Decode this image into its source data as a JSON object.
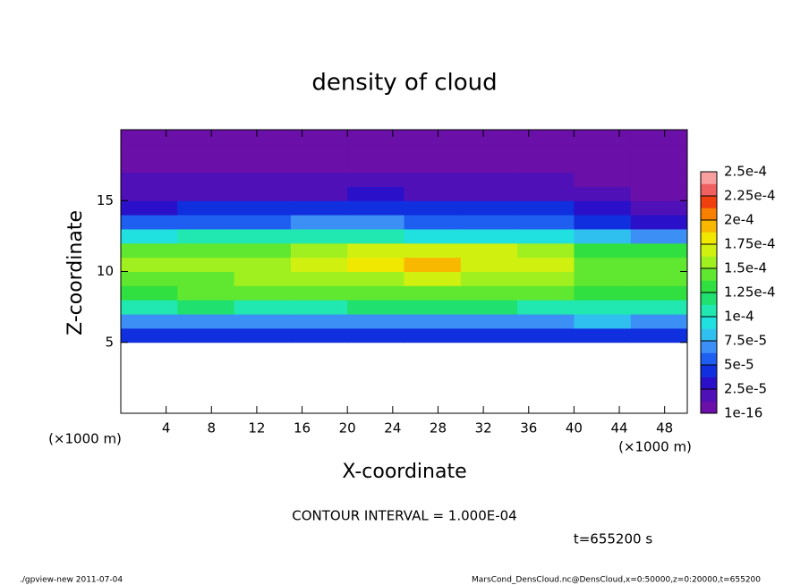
{
  "chart_data": {
    "type": "heatmap",
    "title": "density of cloud",
    "xlabel": "X-coordinate",
    "ylabel": "Z-coordinate",
    "x_unit": "(×1000 m)",
    "xlim": [
      0,
      50
    ],
    "ylim": [
      0,
      20
    ],
    "xticks": [
      4,
      8,
      12,
      16,
      20,
      24,
      28,
      32,
      36,
      40,
      44,
      48
    ],
    "yticks": [
      5,
      10,
      15
    ],
    "x_edges": [
      0,
      5,
      10,
      15,
      20,
      25,
      30,
      35,
      40,
      45,
      50
    ],
    "y_edges": [
      5,
      6,
      7,
      8,
      9,
      10,
      11,
      12,
      13,
      14,
      15,
      16,
      17,
      18,
      19,
      20
    ],
    "values": [
      [
        5e-05,
        4e-05,
        5e-05,
        5e-05,
        5e-05,
        5e-05,
        5e-05,
        5e-05,
        5e-05,
        5e-05
      ],
      [
        7e-05,
        7.5e-05,
        7e-05,
        7.5e-05,
        7.5e-05,
        7.5e-05,
        7.5e-05,
        7e-05,
        8e-05,
        7e-05
      ],
      [
        0.00011,
        0.000115,
        0.00011,
        0.00011,
        0.000115,
        0.00012,
        0.000115,
        0.00011,
        0.00011,
        0.000105
      ],
      [
        0.000135,
        0.00014,
        0.00014,
        0.00014,
        0.000145,
        0.00015,
        0.000145,
        0.00014,
        0.00013,
        0.00013
      ],
      [
        0.00015,
        0.00015,
        0.000155,
        0.000155,
        0.00016,
        0.00017,
        0.00016,
        0.000155,
        0.000145,
        0.00014
      ],
      [
        0.000155,
        0.000155,
        0.00016,
        0.000165,
        0.00018,
        0.00019,
        0.000175,
        0.00017,
        0.00015,
        0.000145
      ],
      [
        0.000145,
        0.00015,
        0.00015,
        0.000155,
        0.00017,
        0.000175,
        0.000165,
        0.000155,
        0.000135,
        0.00013
      ],
      [
        0.0001,
        0.00011,
        0.00011,
        0.00011,
        0.000105,
        0.0001,
        9.5e-05,
        0.0001,
        8e-05,
        7e-05
      ],
      [
        5.5e-05,
        6e-05,
        6e-05,
        6.5e-05,
        6.5e-05,
        6e-05,
        5.5e-05,
        6e-05,
        4e-05,
        3e-05
      ],
      [
        3.5e-05,
        4e-05,
        4e-05,
        4e-05,
        4.5e-05,
        4e-05,
        4e-05,
        4e-05,
        3e-05,
        1.5e-05
      ],
      [
        2e-05,
        2.5e-05,
        2.5e-05,
        2.5e-05,
        3e-05,
        2.5e-05,
        2.5e-05,
        2.5e-05,
        1.5e-05,
        1e-05
      ],
      [
        1.5e-05,
        1.5e-05,
        1.5e-05,
        1.5e-05,
        2e-05,
        1.5e-05,
        1.5e-05,
        1.5e-05,
        1e-05,
        5e-06
      ],
      [
        1e-05,
        1e-05,
        1e-05,
        1e-05,
        1.2e-05,
        1e-05,
        1e-05,
        1e-05,
        8e-06,
        5e-06
      ],
      [
        5e-06,
        5e-06,
        5e-06,
        5e-06,
        6e-06,
        5e-06,
        5e-06,
        5e-06,
        5e-06,
        3e-06
      ],
      [
        2e-06,
        3e-06,
        3e-06,
        3e-06,
        3e-06,
        3e-06,
        3e-06,
        3e-06,
        2e-06,
        1e-06
      ]
    ],
    "clim": [
      1e-16,
      0.00025
    ],
    "colors": [
      "#6a0fa8",
      "#5010b8",
      "#2a10c8",
      "#1030e0",
      "#1e5ef0",
      "#3c90f5",
      "#30c0f0",
      "#20e0e0",
      "#20e8b0",
      "#20e070",
      "#30e040",
      "#60e830",
      "#a0f020",
      "#d0f010",
      "#f0e800",
      "#f8b800",
      "#f88000",
      "#f04010",
      "#f06060",
      "#f8a0a0"
    ],
    "colorbar_ticks": [
      {
        "value": 1e-16,
        "label": "1e-16"
      },
      {
        "value": 2.5e-05,
        "label": "2.5e-5"
      },
      {
        "value": 5e-05,
        "label": "5e-5"
      },
      {
        "value": 7.5e-05,
        "label": "7.5e-5"
      },
      {
        "value": 0.0001,
        "label": "1e-4"
      },
      {
        "value": 0.000125,
        "label": "1.25e-4"
      },
      {
        "value": 0.00015,
        "label": "1.5e-4"
      },
      {
        "value": 0.000175,
        "label": "1.75e-4"
      },
      {
        "value": 0.0002,
        "label": "2e-4"
      },
      {
        "value": 0.000225,
        "label": "2.25e-4"
      },
      {
        "value": 0.00025,
        "label": "2.5e-4"
      }
    ],
    "contour_interval": "CONTOUR INTERVAL = 1.000E-04",
    "time_label": "t=655200 s",
    "footer_left": "./gpview-new  2011-07-04",
    "footer_right": "MarsCond_DensCloud.nc@DensCloud,x=0:50000,z=0:20000,t=655200"
  }
}
